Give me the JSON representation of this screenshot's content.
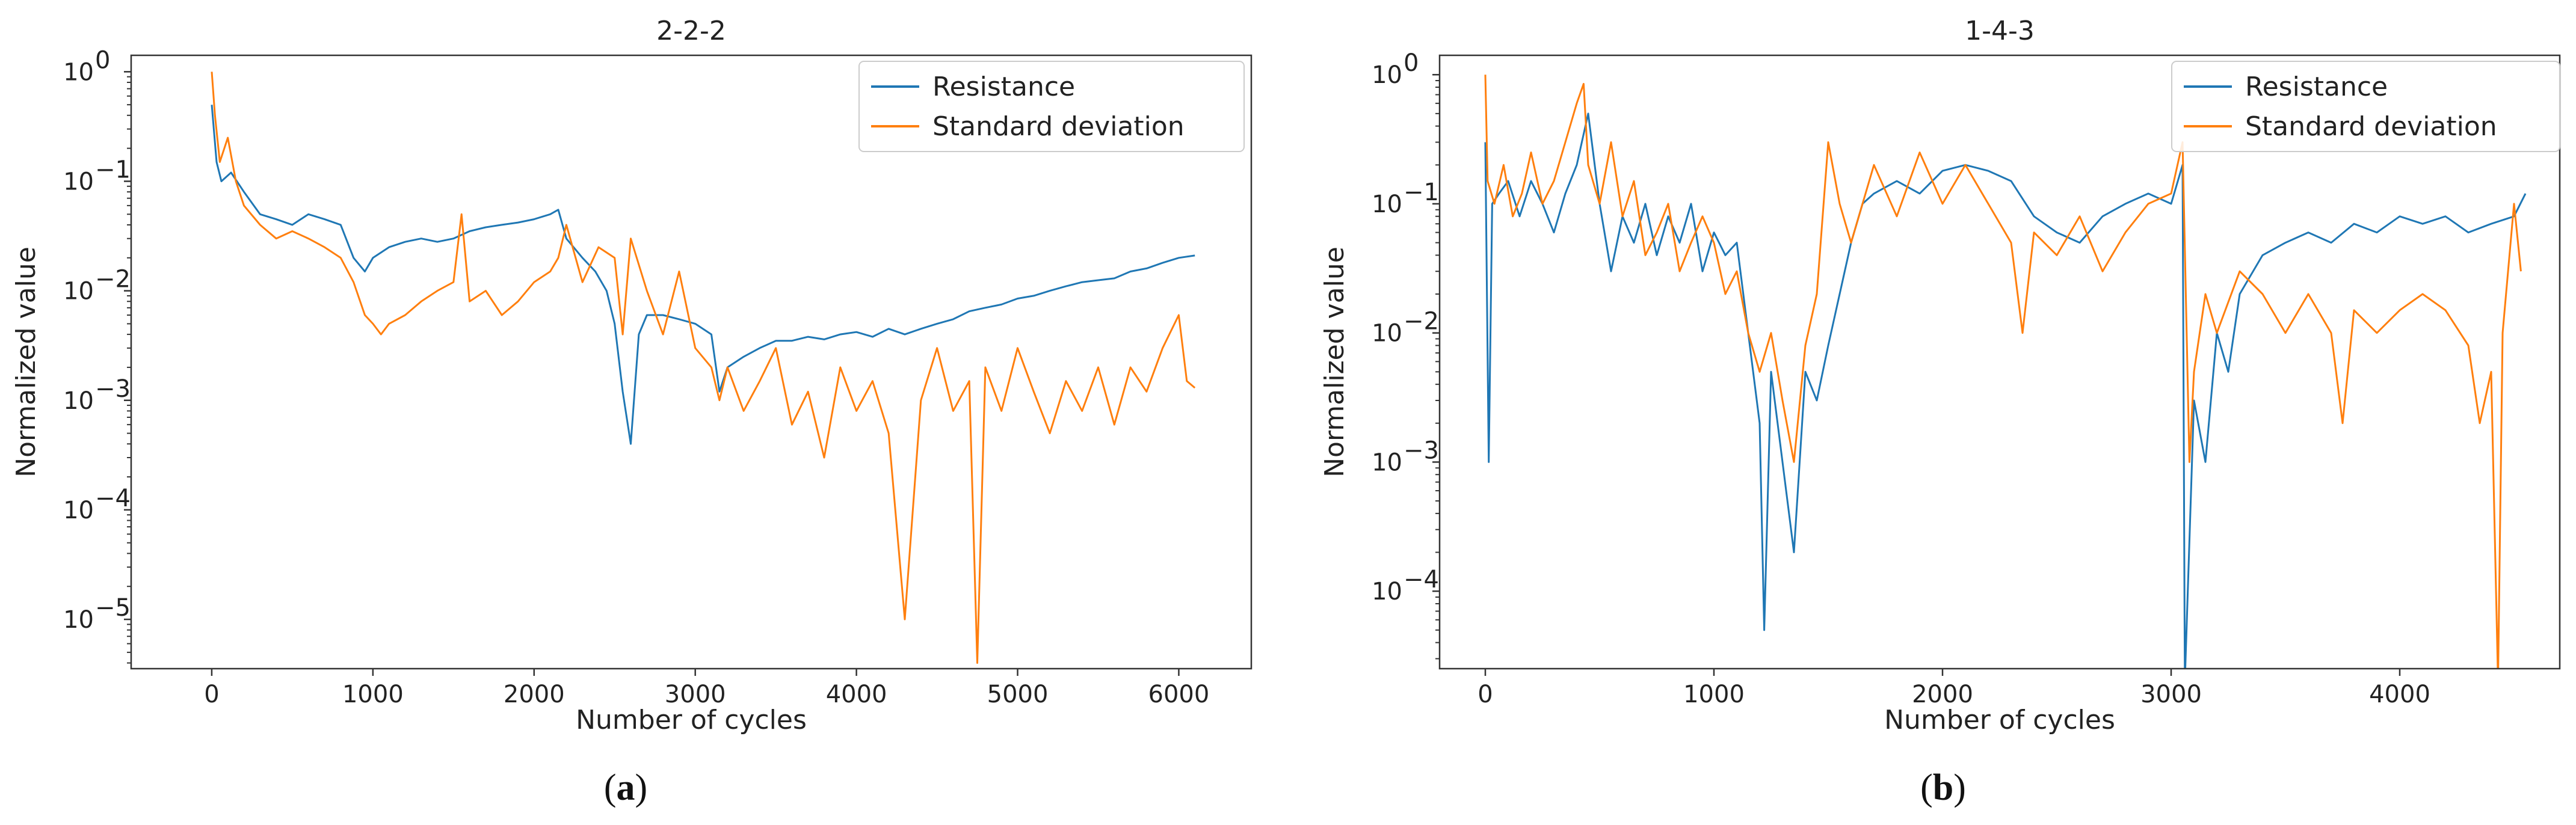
{
  "chart_data": [
    {
      "type": "line",
      "title": "2-2-2",
      "caption": {
        "open": "(",
        "letter": "a",
        "close": ")"
      },
      "xlabel": "Number of cycles",
      "ylabel": "Normalized value",
      "yscale": "log",
      "xlim": [
        -500,
        6450
      ],
      "ylim_exp": [
        -5.45,
        0.15
      ],
      "xticks": [
        0,
        1000,
        2000,
        3000,
        4000,
        5000,
        6000
      ],
      "xtick_labels": [
        "0",
        "1000",
        "2000",
        "3000",
        "4000",
        "5000",
        "6000"
      ],
      "yticks_exp": [
        0,
        -1,
        -2,
        -3,
        -4,
        -5
      ],
      "ytick_labels": [
        {
          "base": "10",
          "exp": "0"
        },
        {
          "base": "10",
          "exp": "−1"
        },
        {
          "base": "10",
          "exp": "−2"
        },
        {
          "base": "10",
          "exp": "−3"
        },
        {
          "base": "10",
          "exp": "−4"
        },
        {
          "base": "10",
          "exp": "−5"
        }
      ],
      "legend": {
        "position": "top-right",
        "entries": [
          "Resistance",
          "Standard deviation"
        ]
      },
      "series": [
        {
          "name": "Resistance",
          "color": "#1f77b4",
          "x": [
            0,
            30,
            60,
            120,
            200,
            300,
            400,
            500,
            600,
            700,
            800,
            880,
            950,
            1000,
            1100,
            1200,
            1300,
            1400,
            1500,
            1600,
            1700,
            1800,
            1900,
            2000,
            2100,
            2150,
            2200,
            2300,
            2380,
            2450,
            2500,
            2550,
            2600,
            2650,
            2700,
            2800,
            2900,
            3000,
            3100,
            3150,
            3200,
            3300,
            3400,
            3500,
            3600,
            3700,
            3800,
            3900,
            4000,
            4100,
            4200,
            4300,
            4400,
            4500,
            4600,
            4700,
            4800,
            4900,
            5000,
            5100,
            5200,
            5300,
            5400,
            5500,
            5600,
            5700,
            5800,
            5900,
            6000,
            6100
          ],
          "y": [
            0.5,
            0.15,
            0.1,
            0.12,
            0.08,
            0.05,
            0.045,
            0.04,
            0.05,
            0.045,
            0.04,
            0.02,
            0.015,
            0.02,
            0.025,
            0.028,
            0.03,
            0.028,
            0.03,
            0.035,
            0.038,
            0.04,
            0.042,
            0.045,
            0.05,
            0.055,
            0.03,
            0.02,
            0.015,
            0.01,
            0.005,
            0.0012,
            0.0004,
            0.004,
            0.006,
            0.006,
            0.0055,
            0.005,
            0.004,
            0.0012,
            0.002,
            0.0025,
            0.003,
            0.0035,
            0.0035,
            0.0038,
            0.0036,
            0.004,
            0.0042,
            0.0038,
            0.0045,
            0.004,
            0.0045,
            0.005,
            0.0055,
            0.0065,
            0.007,
            0.0075,
            0.0085,
            0.009,
            0.01,
            0.011,
            0.012,
            0.0125,
            0.013,
            0.015,
            0.016,
            0.018,
            0.02,
            0.021
          ]
        },
        {
          "name": "Standard deviation",
          "color": "#ff7f0e",
          "x": [
            0,
            20,
            50,
            100,
            150,
            200,
            300,
            400,
            500,
            600,
            700,
            800,
            880,
            950,
            1000,
            1050,
            1100,
            1200,
            1300,
            1400,
            1500,
            1550,
            1600,
            1700,
            1800,
            1900,
            2000,
            2100,
            2150,
            2200,
            2300,
            2400,
            2500,
            2550,
            2600,
            2700,
            2800,
            2900,
            3000,
            3100,
            3150,
            3200,
            3300,
            3400,
            3500,
            3600,
            3700,
            3800,
            3900,
            4000,
            4100,
            4200,
            4300,
            4400,
            4500,
            4600,
            4700,
            4750,
            4800,
            4900,
            5000,
            5100,
            5200,
            5300,
            5400,
            5500,
            5600,
            5700,
            5800,
            5900,
            6000,
            6050,
            6100
          ],
          "y": [
            1.0,
            0.4,
            0.15,
            0.25,
            0.1,
            0.06,
            0.04,
            0.03,
            0.035,
            0.03,
            0.025,
            0.02,
            0.012,
            0.006,
            0.005,
            0.004,
            0.005,
            0.006,
            0.008,
            0.01,
            0.012,
            0.05,
            0.008,
            0.01,
            0.006,
            0.008,
            0.012,
            0.015,
            0.02,
            0.04,
            0.012,
            0.025,
            0.02,
            0.004,
            0.03,
            0.01,
            0.004,
            0.015,
            0.003,
            0.002,
            0.001,
            0.002,
            0.0008,
            0.0015,
            0.003,
            0.0006,
            0.0012,
            0.0003,
            0.002,
            0.0008,
            0.0015,
            0.0005,
            1e-05,
            0.001,
            0.003,
            0.0008,
            0.0015,
            4e-06,
            0.002,
            0.0008,
            0.003,
            0.0012,
            0.0005,
            0.0015,
            0.0008,
            0.002,
            0.0006,
            0.002,
            0.0012,
            0.003,
            0.006,
            0.0015,
            0.0013
          ]
        }
      ]
    },
    {
      "type": "line",
      "title": "1-4-3",
      "caption": {
        "open": "(",
        "letter": "b",
        "close": ")"
      },
      "xlabel": "Number of cycles",
      "ylabel": "Normalized value",
      "yscale": "log",
      "xlim": [
        -200,
        4700
      ],
      "ylim_exp": [
        -4.6,
        0.15
      ],
      "xticks": [
        0,
        1000,
        2000,
        3000,
        4000
      ],
      "xtick_labels": [
        "0",
        "1000",
        "2000",
        "3000",
        "4000"
      ],
      "yticks_exp": [
        0,
        -1,
        -2,
        -3,
        -4
      ],
      "ytick_labels": [
        {
          "base": "10",
          "exp": "0"
        },
        {
          "base": "10",
          "exp": "−1"
        },
        {
          "base": "10",
          "exp": "−2"
        },
        {
          "base": "10",
          "exp": "−3"
        },
        {
          "base": "10",
          "exp": "−4"
        }
      ],
      "legend": {
        "position": "top-right",
        "entries": [
          "Resistance",
          "Standard deviation"
        ]
      },
      "series": [
        {
          "name": "Resistance",
          "color": "#1f77b4",
          "x": [
            0,
            15,
            30,
            60,
            100,
            150,
            200,
            250,
            300,
            350,
            400,
            450,
            500,
            550,
            600,
            650,
            700,
            750,
            800,
            850,
            900,
            950,
            1000,
            1050,
            1100,
            1150,
            1200,
            1220,
            1250,
            1300,
            1350,
            1400,
            1450,
            1500,
            1550,
            1600,
            1650,
            1700,
            1800,
            1900,
            2000,
            2100,
            2200,
            2300,
            2400,
            2500,
            2600,
            2700,
            2800,
            2900,
            3000,
            3050,
            3060,
            3100,
            3150,
            3200,
            3250,
            3300,
            3400,
            3500,
            3600,
            3700,
            3800,
            3900,
            4000,
            4100,
            4200,
            4300,
            4400,
            4500,
            4550
          ],
          "y": [
            0.3,
            0.001,
            0.1,
            0.12,
            0.15,
            0.08,
            0.15,
            0.1,
            0.06,
            0.12,
            0.2,
            0.5,
            0.1,
            0.03,
            0.08,
            0.05,
            0.1,
            0.04,
            0.08,
            0.05,
            0.1,
            0.03,
            0.06,
            0.04,
            0.05,
            0.01,
            0.002,
            5e-05,
            0.005,
            0.001,
            0.0002,
            0.005,
            0.003,
            0.008,
            0.02,
            0.05,
            0.1,
            0.12,
            0.15,
            0.12,
            0.18,
            0.2,
            0.18,
            0.15,
            0.08,
            0.06,
            0.05,
            0.08,
            0.1,
            0.12,
            0.1,
            0.2,
            2e-05,
            0.003,
            0.001,
            0.01,
            0.005,
            0.02,
            0.04,
            0.05,
            0.06,
            0.05,
            0.07,
            0.06,
            0.08,
            0.07,
            0.08,
            0.06,
            0.07,
            0.08,
            0.12
          ]
        },
        {
          "name": "Standard deviation",
          "color": "#ff7f0e",
          "x": [
            0,
            10,
            40,
            80,
            120,
            160,
            200,
            250,
            300,
            350,
            400,
            430,
            450,
            500,
            550,
            600,
            650,
            700,
            750,
            800,
            850,
            900,
            950,
            1000,
            1050,
            1100,
            1150,
            1200,
            1250,
            1300,
            1350,
            1400,
            1450,
            1500,
            1550,
            1600,
            1700,
            1800,
            1900,
            2000,
            2100,
            2200,
            2300,
            2350,
            2400,
            2500,
            2600,
            2700,
            2800,
            2900,
            3000,
            3050,
            3080,
            3100,
            3150,
            3200,
            3300,
            3400,
            3500,
            3600,
            3700,
            3750,
            3800,
            3900,
            4000,
            4100,
            4200,
            4300,
            4350,
            4400,
            4430,
            4450,
            4500,
            4530
          ],
          "y": [
            1.0,
            0.15,
            0.1,
            0.2,
            0.08,
            0.12,
            0.25,
            0.1,
            0.15,
            0.3,
            0.6,
            0.85,
            0.2,
            0.1,
            0.3,
            0.08,
            0.15,
            0.04,
            0.06,
            0.1,
            0.03,
            0.05,
            0.08,
            0.05,
            0.02,
            0.03,
            0.01,
            0.005,
            0.01,
            0.003,
            0.001,
            0.008,
            0.02,
            0.3,
            0.1,
            0.05,
            0.2,
            0.08,
            0.25,
            0.1,
            0.2,
            0.1,
            0.05,
            0.01,
            0.06,
            0.04,
            0.08,
            0.03,
            0.06,
            0.1,
            0.12,
            0.3,
            0.001,
            0.005,
            0.02,
            0.01,
            0.03,
            0.02,
            0.01,
            0.02,
            0.01,
            0.002,
            0.015,
            0.01,
            0.015,
            0.02,
            0.015,
            0.008,
            0.002,
            0.005,
            2e-05,
            0.01,
            0.1,
            0.03
          ]
        }
      ]
    }
  ]
}
